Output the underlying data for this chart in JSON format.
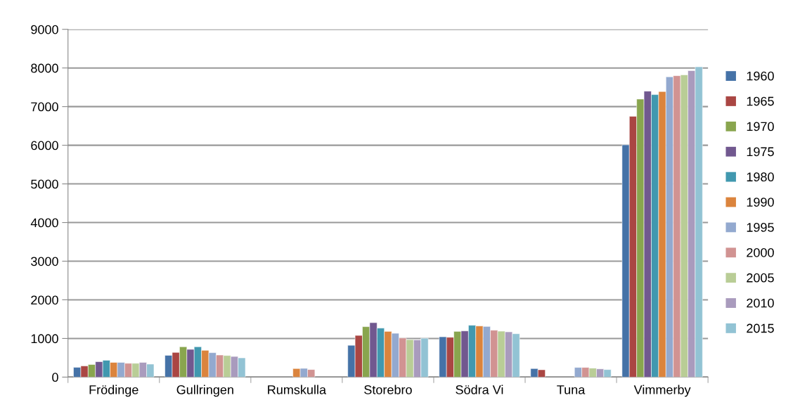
{
  "chart_data": {
    "type": "bar",
    "categories": [
      "Frödinge",
      "Gullringen",
      "Rumskulla",
      "Storebro",
      "Södra Vi",
      "Tuna",
      "Vimmerby"
    ],
    "ylim": [
      0,
      9000
    ],
    "yticks": [
      0,
      1000,
      2000,
      3000,
      4000,
      5000,
      6000,
      7000,
      8000,
      9000
    ],
    "grid": "y",
    "legend": "right",
    "series": [
      {
        "name": "1960",
        "color": "#4572a7",
        "values": [
          252,
          564,
          null,
          823,
          1043,
          220,
          6010
        ]
      },
      {
        "name": "1965",
        "color": "#aa4643",
        "values": [
          288,
          638,
          null,
          1079,
          1030,
          190,
          6750
        ]
      },
      {
        "name": "1970",
        "color": "#89a54e",
        "values": [
          325,
          785,
          null,
          1305,
          1183,
          null,
          7195
        ]
      },
      {
        "name": "1975",
        "color": "#71588f",
        "values": [
          399,
          718,
          null,
          1409,
          1195,
          null,
          7400
        ]
      },
      {
        "name": "1980",
        "color": "#4198af",
        "values": [
          436,
          785,
          null,
          1268,
          1341,
          null,
          7310
        ]
      },
      {
        "name": "1990",
        "color": "#db843d",
        "values": [
          380,
          693,
          221,
          1183,
          1323,
          null,
          7390
        ]
      },
      {
        "name": "1995",
        "color": "#93a9cf",
        "values": [
          380,
          632,
          227,
          1134,
          1311,
          250,
          7770
        ]
      },
      {
        "name": "2000",
        "color": "#d19392",
        "values": [
          356,
          571,
          196,
          1012,
          1213,
          250,
          7800
        ]
      },
      {
        "name": "2005",
        "color": "#b9cd96",
        "values": [
          356,
          558,
          null,
          970,
          1189,
          232,
          7820
        ]
      },
      {
        "name": "2010",
        "color": "#a99bbd",
        "values": [
          380,
          534,
          null,
          963,
          1171,
          213,
          7930
        ]
      },
      {
        "name": "2015",
        "color": "#92c3d4",
        "values": [
          337,
          497,
          null,
          1006,
          1122,
          195,
          8030
        ]
      }
    ]
  }
}
